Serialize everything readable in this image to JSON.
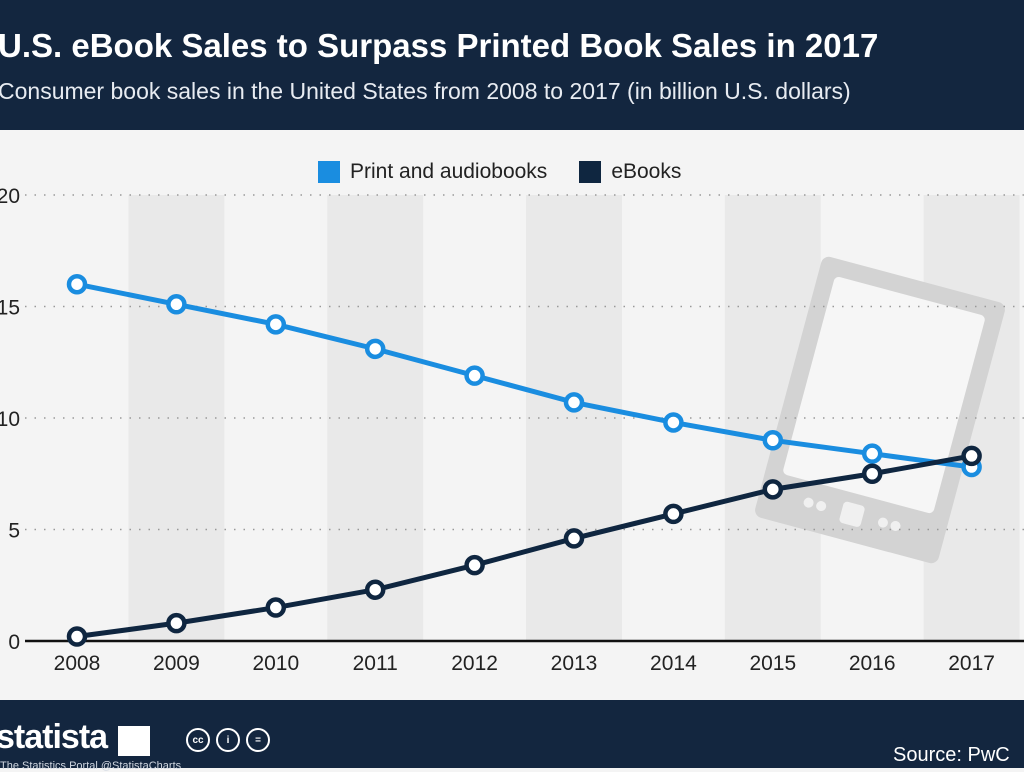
{
  "header": {
    "title": "U.S. eBook Sales to Surpass Printed Book Sales in 2017",
    "subtitle": "Consumer book sales in the United States from 2008 to 2017 (in billion U.S. dollars)"
  },
  "footer": {
    "logo": "statista",
    "tagline": "The Statistics Portal  @StatistaCharts",
    "cc_icons": [
      "cc",
      "by",
      "nd"
    ],
    "source": "Source: PwC"
  },
  "chart_data": {
    "type": "line",
    "title": "U.S. eBook Sales to Surpass Printed Book Sales in 2017",
    "subtitle": "Consumer book sales in the United States from 2008 to 2017 (in billion U.S. dollars)",
    "x": [
      "2008",
      "2009",
      "2010",
      "2011",
      "2012",
      "2013",
      "2014",
      "2015",
      "2016",
      "2017"
    ],
    "yticks": [
      "0",
      "5",
      "10",
      "15",
      "20"
    ],
    "ylim": [
      0,
      20
    ],
    "grid": true,
    "legend_position": "top-center",
    "series": [
      {
        "name": "Print and audiobooks",
        "color": "#1a8de0",
        "values": [
          16.0,
          15.1,
          14.2,
          13.1,
          11.9,
          10.7,
          9.8,
          9.0,
          8.4,
          7.8
        ]
      },
      {
        "name": "eBooks",
        "color": "#0f2640",
        "values": [
          0.2,
          0.8,
          1.5,
          2.3,
          3.4,
          4.6,
          5.7,
          6.8,
          7.5,
          8.3
        ]
      }
    ]
  }
}
